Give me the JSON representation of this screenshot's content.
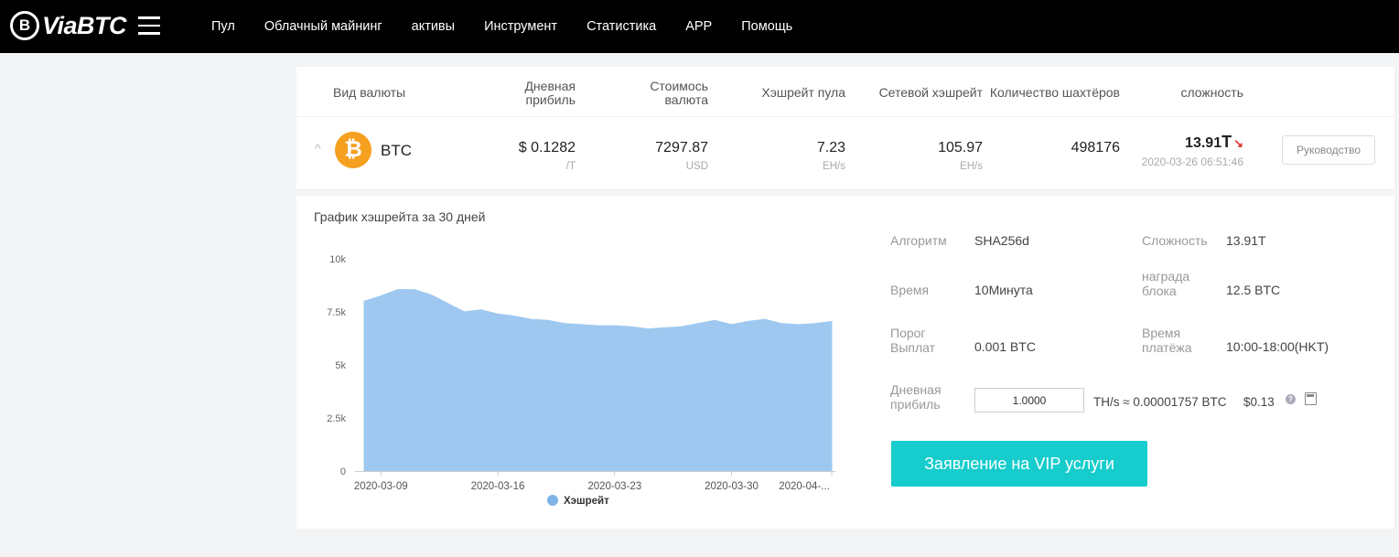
{
  "brand": {
    "name": "ViaBTC",
    "mark": "B"
  },
  "nav": [
    "Пул",
    "Облачный майнинг",
    "активы",
    "Инструмент",
    "Статистика",
    "APP",
    "Помощь"
  ],
  "table": {
    "headers": {
      "currency": "Вид валюты",
      "daily_profit": "Дневная прибиль",
      "price": "Стоимось валюта",
      "pool_hashrate": "Хэшрейт пула",
      "network_hashrate": "Сетевой хэшрейт",
      "miners": "Количество шахтёров",
      "difficulty": "сложность"
    },
    "row": {
      "coin": "BTC",
      "coin_symbol": "₿",
      "expand_icon": "^",
      "daily_profit": "$ 0.1282",
      "daily_profit_unit": "/T",
      "price": "7297.87",
      "price_unit": "USD",
      "pool_hashrate": "7.23",
      "pool_hashrate_unit": "EH/s",
      "network_hashrate": "105.97",
      "network_hashrate_unit": "EH/s",
      "miners": "498176",
      "difficulty": "13.91",
      "difficulty_unit": "T",
      "difficulty_trend": "↘",
      "difficulty_time": "2020-03-26 06:51:46",
      "guide_button": "Руководство"
    }
  },
  "chart_title": "График хэшрейта за 30 дней",
  "chart_data": {
    "type": "area",
    "title": "График хэшрейта за 30 дней",
    "xlabel": "",
    "ylabel": "",
    "ylim": [
      0,
      10000
    ],
    "yticks": [
      "0",
      "2.5k",
      "5k",
      "7.5k",
      "10k"
    ],
    "xtick_labels": [
      "2020-03-09",
      "2020-03-16",
      "2020-03-23",
      "2020-03-30",
      "2020-04-..."
    ],
    "legend": "Хэшрейт",
    "color": "#9ec8ef",
    "points": [
      [
        "2020-03-08",
        8000
      ],
      [
        "2020-03-09",
        8250
      ],
      [
        "2020-03-10",
        8550
      ],
      [
        "2020-03-11",
        8550
      ],
      [
        "2020-03-12",
        8300
      ],
      [
        "2020-03-13",
        7900
      ],
      [
        "2020-03-14",
        7500
      ],
      [
        "2020-03-15",
        7600
      ],
      [
        "2020-03-16",
        7400
      ],
      [
        "2020-03-17",
        7300
      ],
      [
        "2020-03-18",
        7150
      ],
      [
        "2020-03-19",
        7100
      ],
      [
        "2020-03-20",
        6950
      ],
      [
        "2020-03-21",
        6900
      ],
      [
        "2020-03-22",
        6850
      ],
      [
        "2020-03-23",
        6850
      ],
      [
        "2020-03-24",
        6800
      ],
      [
        "2020-03-25",
        6700
      ],
      [
        "2020-03-26",
        6750
      ],
      [
        "2020-03-27",
        6800
      ],
      [
        "2020-03-28",
        6950
      ],
      [
        "2020-03-29",
        7100
      ],
      [
        "2020-03-30",
        6900
      ],
      [
        "2020-03-31",
        7050
      ],
      [
        "2020-04-01",
        7150
      ],
      [
        "2020-04-02",
        6950
      ],
      [
        "2020-04-03",
        6900
      ],
      [
        "2020-04-04",
        6950
      ],
      [
        "2020-04-05",
        7050
      ]
    ]
  },
  "info": {
    "algorithm_label": "Алгоритм",
    "algorithm": "SHA256d",
    "difficulty_label": "Сложность",
    "difficulty": "13.91T",
    "time_label": "Время",
    "time": "10Минута",
    "reward_label": "награда блока",
    "reward": "12.5 BTC",
    "threshold_label": "Порог Выплат",
    "threshold": "0.001 BTC",
    "payout_time_label": "Время платёжа",
    "payout_time": "10:00-18:00(HKT)",
    "daily_profit_label": "Дневная прибиль",
    "calc_input": "1.0000",
    "calc_result": "TH/s ≈ 0.00001757 BTC",
    "calc_usd": "$0.13",
    "help_icon": "?",
    "vip_button": "Заявление на VIP услуги"
  }
}
